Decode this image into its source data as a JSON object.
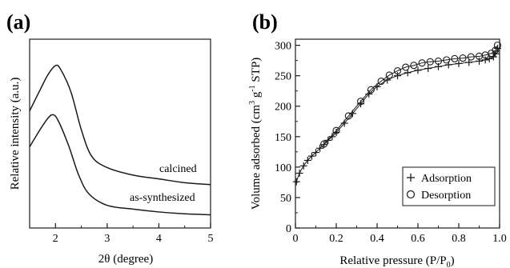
{
  "chart_data": [
    {
      "type": "line",
      "panel": "(a)",
      "xlabel": "2θ (degree)",
      "ylabel": "Relative intensity  (a.u.)",
      "xlim": [
        1.5,
        5
      ],
      "ylim": [
        0,
        1
      ],
      "x_ticks": [
        "2",
        "3",
        "4",
        "5"
      ],
      "y_ticks_shown": false,
      "series": [
        {
          "name": "calcined",
          "x": [
            1.5,
            1.7,
            1.85,
            2.0,
            2.1,
            2.3,
            2.5,
            2.7,
            3.0,
            3.5,
            4.0,
            4.5,
            5.0
          ],
          "y": [
            0.62,
            0.73,
            0.81,
            0.86,
            0.84,
            0.72,
            0.52,
            0.38,
            0.32,
            0.28,
            0.26,
            0.24,
            0.23
          ]
        },
        {
          "name": "as-synthesized",
          "x": [
            1.5,
            1.7,
            1.85,
            1.95,
            2.05,
            2.25,
            2.45,
            2.65,
            3.0,
            3.5,
            4.0,
            4.5,
            5.0
          ],
          "y": [
            0.43,
            0.52,
            0.58,
            0.6,
            0.57,
            0.44,
            0.28,
            0.18,
            0.12,
            0.1,
            0.085,
            0.075,
            0.07
          ]
        }
      ]
    },
    {
      "type": "scatter",
      "panel": "(b)",
      "xlabel_main": "Relative pressure (P/P",
      "xlabel_sub": "0",
      "xlabel_end": ")",
      "ylabel_main": "Volume adsorbed (cm",
      "ylabel_sup1": "3",
      "ylabel_mid": " g",
      "ylabel_sup2": "-1",
      "ylabel_end": " STP)",
      "xlim": [
        0,
        1.0
      ],
      "ylim": [
        0,
        310
      ],
      "x_ticks": [
        "0",
        "0.2",
        "0.4",
        "0.6",
        "0.8",
        "1.0"
      ],
      "y_ticks": [
        "0",
        "50",
        "100",
        "150",
        "200",
        "250",
        "300"
      ],
      "legend_position": "bottom-right",
      "series": [
        {
          "name": "Adsorption",
          "marker": "+",
          "x": [
            0.005,
            0.02,
            0.04,
            0.06,
            0.08,
            0.1,
            0.12,
            0.14,
            0.16,
            0.18,
            0.2,
            0.24,
            0.28,
            0.32,
            0.36,
            0.4,
            0.45,
            0.5,
            0.55,
            0.6,
            0.65,
            0.7,
            0.75,
            0.8,
            0.85,
            0.9,
            0.93,
            0.95,
            0.97,
            0.98,
            0.99
          ],
          "y": [
            76,
            90,
            102,
            111,
            118,
            124,
            131,
            137,
            144,
            150,
            157,
            172,
            188,
            204,
            220,
            232,
            243,
            250,
            255,
            259,
            262,
            265,
            268,
            270,
            272,
            274,
            276,
            278,
            281,
            286,
            295
          ]
        },
        {
          "name": "Desorption",
          "marker": "o",
          "x": [
            0.99,
            0.98,
            0.96,
            0.93,
            0.9,
            0.86,
            0.82,
            0.78,
            0.74,
            0.7,
            0.66,
            0.62,
            0.58,
            0.54,
            0.5,
            0.46,
            0.42,
            0.37,
            0.32,
            0.26,
            0.2,
            0.14
          ],
          "y": [
            300,
            292,
            287,
            284,
            282,
            281,
            279,
            278,
            276,
            274,
            273,
            271,
            267,
            264,
            258,
            251,
            241,
            227,
            208,
            184,
            160,
            138
          ]
        }
      ]
    }
  ]
}
